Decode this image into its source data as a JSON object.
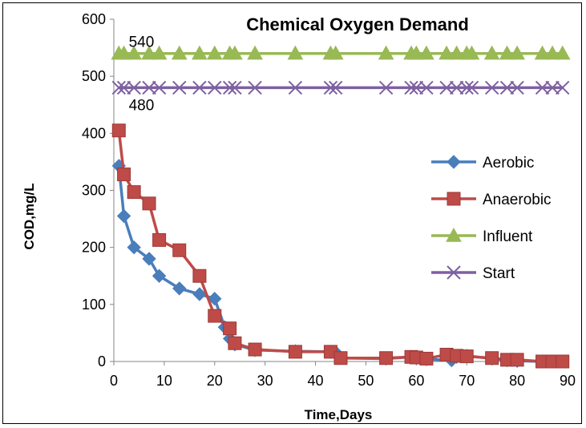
{
  "chart_data": {
    "type": "line",
    "title": "Chemical Oxygen Demand",
    "xlabel": "Time,Days",
    "ylabel": "COD,mg/L",
    "xlim": [
      0,
      90
    ],
    "ylim": [
      0,
      600
    ],
    "xticks": [
      0,
      10,
      20,
      30,
      40,
      50,
      60,
      70,
      80,
      90
    ],
    "yticks": [
      0,
      100,
      200,
      300,
      400,
      500,
      600
    ],
    "grid": false,
    "legend_position": "right",
    "annotations": [
      {
        "text": "540",
        "x": 2,
        "y": 540
      },
      {
        "text": "480",
        "x": 2,
        "y": 480
      }
    ],
    "series": [
      {
        "name": "Aerobic",
        "color": "#4a7ebb",
        "marker": "diamond",
        "x": [
          1,
          2,
          4,
          7,
          9,
          13,
          17,
          20,
          22,
          23,
          24,
          28,
          36,
          43,
          44,
          45,
          54,
          59,
          60,
          62,
          67,
          68,
          70,
          75,
          78,
          80,
          85,
          87,
          89
        ],
        "y": [
          343,
          255,
          200,
          180,
          150,
          128,
          118,
          110,
          60,
          40,
          30,
          20,
          18,
          17,
          16,
          6,
          5,
          8,
          6,
          4,
          2,
          8,
          10,
          5,
          2,
          1,
          0,
          0,
          0
        ]
      },
      {
        "name": "Anaerobic",
        "color": "#be4b48",
        "marker": "square",
        "x": [
          1,
          2,
          4,
          7,
          9,
          13,
          17,
          20,
          23,
          24,
          28,
          36,
          43,
          45,
          54,
          59,
          60,
          62,
          66,
          68,
          70,
          75,
          78,
          80,
          85,
          87,
          89
        ],
        "y": [
          405,
          328,
          297,
          277,
          213,
          195,
          150,
          80,
          58,
          32,
          21,
          17,
          17,
          6,
          6,
          8,
          7,
          5,
          12,
          10,
          9,
          6,
          3,
          3,
          0,
          0,
          0
        ]
      },
      {
        "name": "Influent",
        "color": "#98b954",
        "marker": "triangle",
        "x": [
          1,
          2,
          4,
          7,
          9,
          13,
          17,
          20,
          23,
          24,
          28,
          36,
          43,
          44,
          54,
          59,
          60,
          62,
          66,
          68,
          70,
          71,
          75,
          78,
          80,
          85,
          87,
          89
        ],
        "y": [
          540,
          540,
          540,
          540,
          540,
          540,
          540,
          540,
          540,
          540,
          540,
          540,
          540,
          540,
          540,
          540,
          540,
          540,
          540,
          540,
          540,
          540,
          540,
          540,
          540,
          540,
          540,
          540
        ]
      },
      {
        "name": "Start",
        "color": "#7d60a0",
        "marker": "x",
        "x": [
          1,
          2,
          4,
          7,
          9,
          13,
          17,
          20,
          23,
          24,
          28,
          36,
          43,
          44,
          54,
          59,
          60,
          62,
          66,
          68,
          70,
          71,
          75,
          78,
          80,
          85,
          87,
          89
        ],
        "y": [
          480,
          480,
          480,
          480,
          480,
          480,
          480,
          480,
          480,
          480,
          480,
          480,
          480,
          480,
          480,
          480,
          480,
          480,
          480,
          480,
          480,
          480,
          480,
          480,
          480,
          480,
          480,
          480
        ]
      }
    ]
  }
}
